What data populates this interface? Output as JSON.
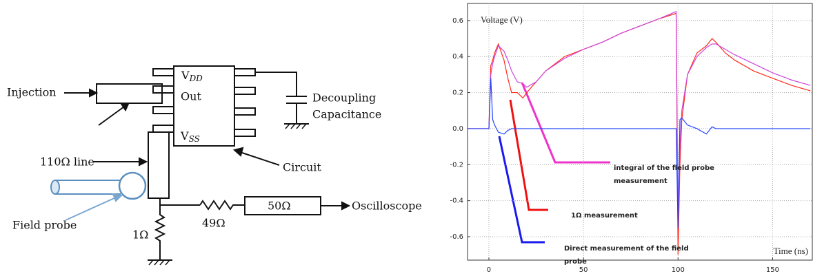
{
  "diagram": {
    "injection": "Injection",
    "out": "Out",
    "vdd": {
      "main": "V",
      "sub": "DD"
    },
    "vss": {
      "main": "V",
      "sub": "SS"
    },
    "decoupling": [
      "Decoupling",
      "Capacitance"
    ],
    "line_label": "110Ω line",
    "circuit": "Circuit",
    "field_probe": "Field probe",
    "r1": "1Ω",
    "r49": "49Ω",
    "r50": "50Ω",
    "oscilloscope": "Oscilloscope"
  },
  "chart_data": {
    "type": "line",
    "ylabel": "Voltage (V)",
    "xlabel": "Time (ns)",
    "x": [
      -11,
      0,
      1,
      2,
      3,
      5,
      8,
      10,
      12,
      15,
      18,
      20,
      25,
      30,
      40,
      50,
      60,
      70,
      80,
      90,
      99,
      100,
      101,
      102,
      105,
      110,
      115,
      118,
      120,
      125,
      130,
      140,
      150,
      160,
      170
    ],
    "series": [
      {
        "name": "1Ω measurement",
        "color": "#ff2a1a",
        "values": [
          0.0,
          0.0,
          0.35,
          0.38,
          0.42,
          0.47,
          0.38,
          0.28,
          0.2,
          0.2,
          0.17,
          0.2,
          0.26,
          0.32,
          0.4,
          0.44,
          0.48,
          0.53,
          0.57,
          0.61,
          0.64,
          -0.7,
          -0.2,
          0.05,
          0.3,
          0.42,
          0.46,
          0.5,
          0.48,
          0.42,
          0.38,
          0.32,
          0.28,
          0.24,
          0.21
        ]
      },
      {
        "name": "integral of the field probe measurement",
        "color": "#cc44dd",
        "values": [
          0.0,
          0.0,
          0.3,
          0.36,
          0.4,
          0.46,
          0.43,
          0.38,
          0.32,
          0.26,
          0.25,
          0.23,
          0.26,
          0.32,
          0.39,
          0.44,
          0.48,
          0.53,
          0.57,
          0.61,
          0.65,
          -0.5,
          -0.1,
          0.1,
          0.3,
          0.4,
          0.45,
          0.47,
          0.47,
          0.44,
          0.41,
          0.36,
          0.31,
          0.27,
          0.24
        ]
      },
      {
        "name": "Direct measurement of the field probe",
        "color": "#2244ff",
        "values": [
          0.0,
          0.0,
          0.28,
          0.05,
          0.02,
          -0.02,
          -0.03,
          -0.01,
          0.0,
          0.0,
          0.0,
          0.0,
          0.0,
          0.0,
          0.0,
          0.0,
          0.0,
          0.0,
          0.0,
          0.0,
          0.0,
          -0.55,
          0.05,
          0.06,
          0.02,
          0.0,
          -0.03,
          0.01,
          0.0,
          0.0,
          0.0,
          0.0,
          0.0,
          0.0,
          0.0
        ]
      }
    ],
    "annotations": [
      {
        "lines": [
          "integral of the field probe",
          "measurement"
        ],
        "color": "#ee33cc"
      },
      {
        "lines": [
          "1Ω measurement"
        ],
        "color": "#ee1111"
      },
      {
        "lines": [
          "Direct measurement of the field",
          "probe"
        ],
        "color": "#1a1aee"
      }
    ],
    "xlim": [
      -11.3,
      171
    ],
    "ylim": [
      -0.73,
      0.695
    ],
    "xticks": [
      0,
      50,
      100,
      150
    ],
    "yticks": [
      {
        "value": 0.6,
        "label": "0.6"
      },
      {
        "value": 0.4,
        "label": "0.4"
      },
      {
        "value": 0.2,
        "label": "0.2"
      },
      {
        "value": 0,
        "label": "0.0"
      },
      {
        "value": -0.2,
        "label": "-0.2"
      },
      {
        "value": -0.4,
        "label": "-0.4"
      },
      {
        "value": -0.6,
        "label": "-0.6"
      }
    ],
    "grid": true
  }
}
